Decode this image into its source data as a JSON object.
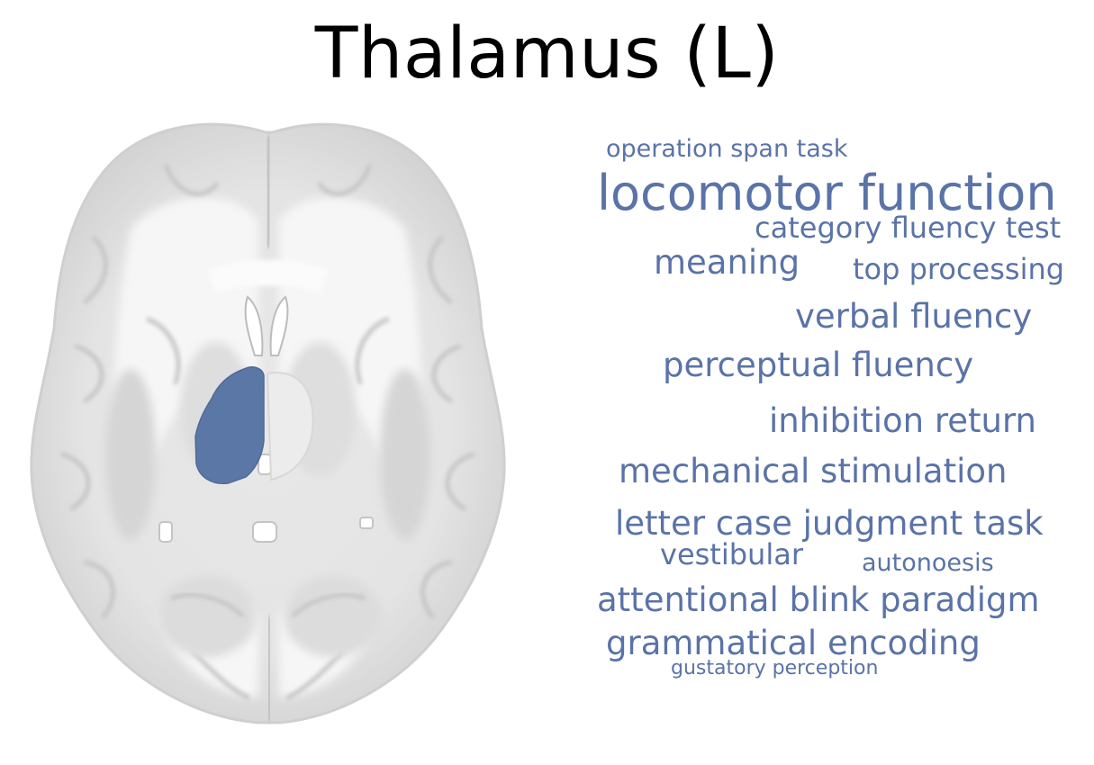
{
  "figure": {
    "title": "Thalamus (L)",
    "region_color": "#5a77a6",
    "term_color": "#5a73a8"
  },
  "brain_slice": {
    "view": "axial",
    "highlighted_region": "left-thalamus"
  },
  "word_cloud": {
    "terms": [
      {
        "text": "operation span task",
        "weight": 0.3
      },
      {
        "text": "locomotor function",
        "weight": 1.0
      },
      {
        "text": "category fluency test",
        "weight": 0.38
      },
      {
        "text": "meaning",
        "weight": 0.52
      },
      {
        "text": "top processing",
        "weight": 0.38
      },
      {
        "text": "verbal fluency",
        "weight": 0.52
      },
      {
        "text": "perceptual fluency",
        "weight": 0.52
      },
      {
        "text": "inhibition return",
        "weight": 0.52
      },
      {
        "text": "mechanical stimulation",
        "weight": 0.52
      },
      {
        "text": "letter case judgment task",
        "weight": 0.52
      },
      {
        "text": "vestibular",
        "weight": 0.4
      },
      {
        "text": "autonoesis",
        "weight": 0.3
      },
      {
        "text": "attentional blink paradigm",
        "weight": 0.52
      },
      {
        "text": "grammatical encoding",
        "weight": 0.52
      },
      {
        "text": "gustatory perception",
        "weight": 0.22
      }
    ]
  }
}
